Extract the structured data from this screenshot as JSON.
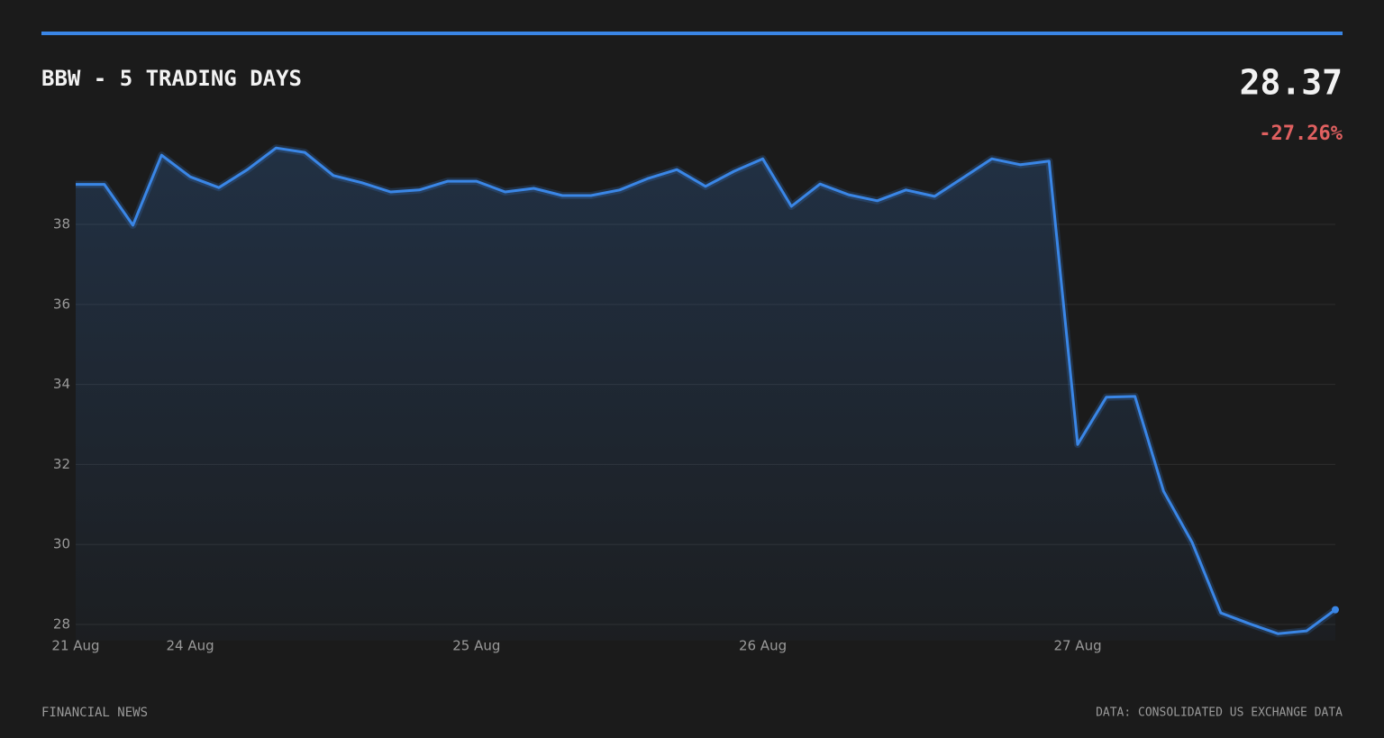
{
  "chart_data": {
    "type": "line",
    "title": "BBW - 5 TRADING DAYS",
    "last_price": "28.37",
    "change": "-27.26%",
    "footer_left": "FINANCIAL NEWS",
    "footer_right": "DATA: CONSOLIDATED US EXCHANGE DATA",
    "categories": [
      "21 Aug",
      null,
      null,
      null,
      "24 Aug",
      null,
      null,
      null,
      null,
      null,
      null,
      null,
      null,
      null,
      "25 Aug",
      null,
      null,
      null,
      null,
      null,
      null,
      null,
      null,
      null,
      "26 Aug",
      null,
      null,
      null,
      null,
      null,
      null,
      null,
      null,
      null,
      null,
      "27 Aug",
      null,
      null,
      null,
      null,
      null,
      null,
      null,
      null,
      null
    ],
    "values": [
      39.0,
      39.0,
      37.98,
      39.73,
      39.19,
      38.92,
      39.37,
      39.91,
      39.8,
      39.22,
      39.04,
      38.81,
      38.86,
      39.08,
      39.08,
      38.81,
      38.9,
      38.72,
      38.72,
      38.86,
      39.15,
      39.37,
      38.95,
      39.33,
      39.64,
      38.45,
      39.01,
      38.74,
      38.59,
      38.86,
      38.7,
      39.17,
      39.64,
      39.49,
      39.58,
      32.5,
      33.68,
      33.7,
      31.33,
      30.05,
      28.29,
      28.02,
      27.77,
      27.84,
      28.37
    ],
    "color": "#3a86e6",
    "ylim": [
      27.6,
      40
    ],
    "yticks": [
      28,
      30,
      32,
      34,
      36,
      38
    ],
    "grid": true
  }
}
